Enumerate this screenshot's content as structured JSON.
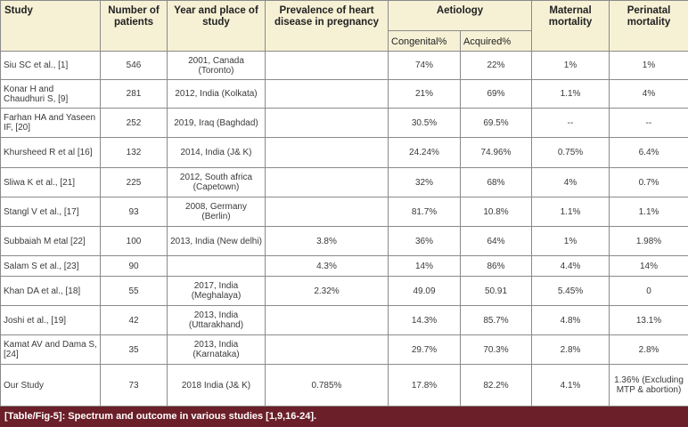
{
  "headers": {
    "study": "Study",
    "patients": "Number of patients",
    "year_place": "Year and place of study",
    "prevalence": "Prevalence of heart disease in pregnancy",
    "aetiology": "Aetiology",
    "congenital": "Congenital%",
    "acquired": "Acquired%",
    "maternal": "Maternal mortality",
    "perinatal": "Perinatal mortality"
  },
  "rows": [
    {
      "study": "Siu SC et al., [1]",
      "patients": "546",
      "year_place": "2001, Canada (Toronto)",
      "prevalence": "",
      "congenital": "74%",
      "acquired": "22%",
      "maternal": "1%",
      "perinatal": "1%"
    },
    {
      "study": "Konar H and Chaudhuri S, [9]",
      "patients": "281",
      "year_place": "2012, India (Kolkata)",
      "prevalence": "",
      "congenital": "21%",
      "acquired": "69%",
      "maternal": "1.1%",
      "perinatal": "4%"
    },
    {
      "study": "Farhan HA and Yaseen IF, [20]",
      "patients": "252",
      "year_place": "2019, Iraq (Baghdad)",
      "prevalence": "",
      "congenital": "30.5%",
      "acquired": "69.5%",
      "maternal": "--",
      "perinatal": "--"
    },
    {
      "study": "Khursheed R et al [16]",
      "patients": "132",
      "year_place": "2014, India (J& K)",
      "prevalence": "",
      "congenital": "24.24%",
      "acquired": "74.96%",
      "maternal": "0.75%",
      "perinatal": "6.4%"
    },
    {
      "study": "Sliwa K et al., [21]",
      "patients": "225",
      "year_place": "2012, South africa (Capetown)",
      "prevalence": "",
      "congenital": "32%",
      "acquired": "68%",
      "maternal": "4%",
      "perinatal": "0.7%"
    },
    {
      "study": "Stangl V et al., [17]",
      "patients": "93",
      "year_place": "2008, Germany (Berlin)",
      "prevalence": "",
      "congenital": "81.7%",
      "acquired": "10.8%",
      "maternal": "1.1%",
      "perinatal": "1.1%"
    },
    {
      "study": "Subbaiah M etal [22]",
      "patients": "100",
      "year_place": "2013, India (New delhi)",
      "prevalence": "3.8%",
      "congenital": "36%",
      "acquired": "64%",
      "maternal": "1%",
      "perinatal": "1.98%"
    },
    {
      "study": "Salam S et al., [23]",
      "patients": "90",
      "year_place": "",
      "prevalence": "4.3%",
      "congenital": "14%",
      "acquired": "86%",
      "maternal": "4.4%",
      "perinatal": "14%"
    },
    {
      "study": "Khan DA et al., [18]",
      "patients": "55",
      "year_place": "2017, India (Meghalaya)",
      "prevalence": "2.32%",
      "congenital": "49.09",
      "acquired": "50.91",
      "maternal": "5.45%",
      "perinatal": "0"
    },
    {
      "study": "Joshi et al., [19]",
      "patients": "42",
      "year_place": "2013, India (Uttarakhand)",
      "prevalence": "",
      "congenital": "14.3%",
      "acquired": "85.7%",
      "maternal": "4.8%",
      "perinatal": "13.1%"
    },
    {
      "study": "Kamat AV and Dama S, [24]",
      "patients": "35",
      "year_place": "2013, India (Karnataka)",
      "prevalence": "",
      "congenital": "29.7%",
      "acquired": "70.3%",
      "maternal": "2.8%",
      "perinatal": "2.8%"
    },
    {
      "study": "Our Study",
      "patients": "73",
      "year_place": "2018 India (J& K)",
      "prevalence": "0.785%",
      "congenital": "17.8%",
      "acquired": "82.2%",
      "maternal": "4.1%",
      "perinatal": "1.36% (Excluding MTP & abortion)"
    }
  ],
  "caption": "[Table/Fig-5]: Spectrum and outcome in various studies [1,9,16-24].",
  "colors": {
    "header_bg": "#f6f1d5",
    "caption_bg": "#6b1f29",
    "border": "#8a8a8a"
  }
}
